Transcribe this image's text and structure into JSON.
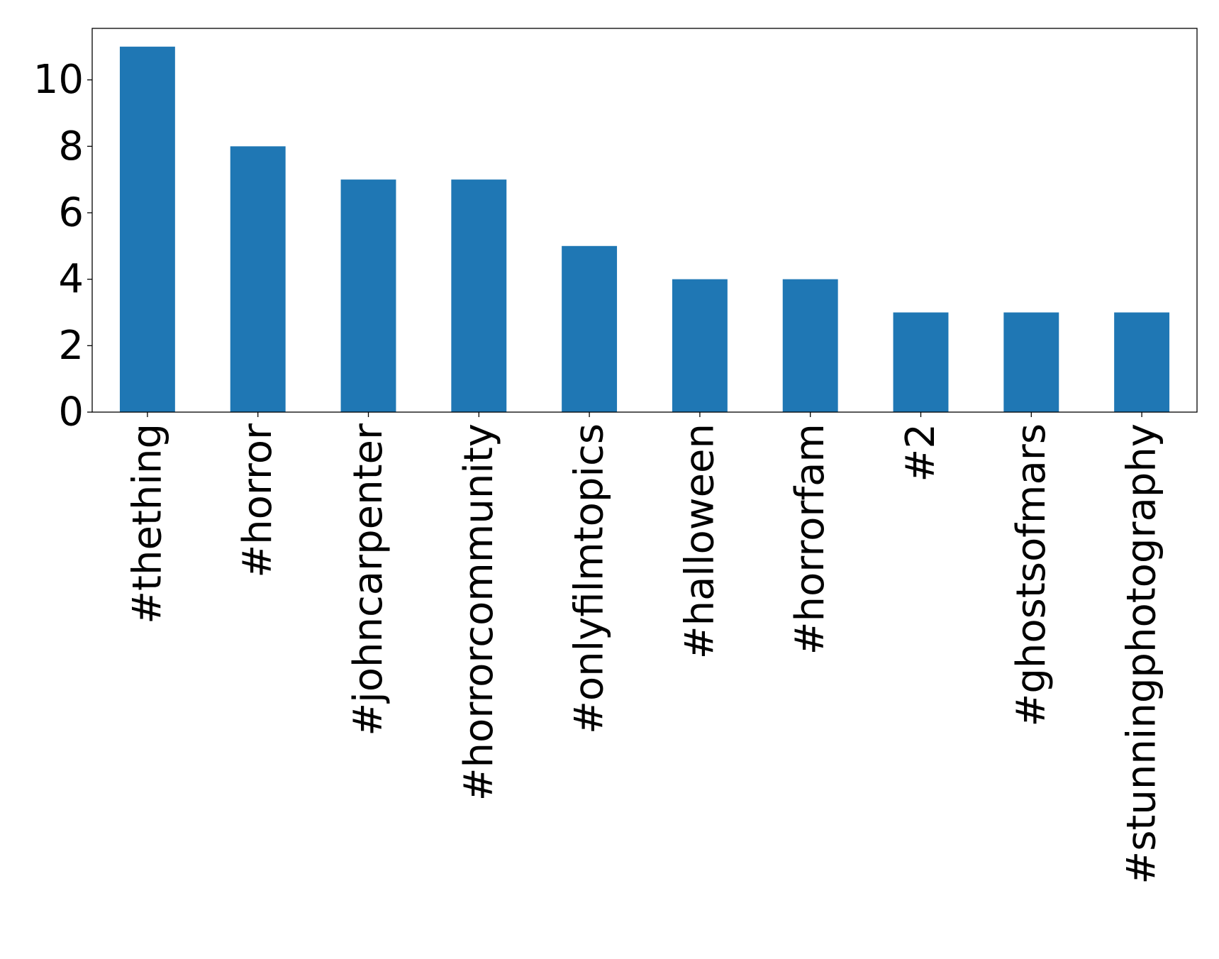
{
  "chart_data": {
    "type": "bar",
    "title": "",
    "xlabel": "",
    "ylabel": "",
    "categories": [
      "#thething",
      "#horror",
      "#johncarpenter",
      "#horrorcommunity",
      "#onlyfilmtopics",
      "#halloween",
      "#horrorfam",
      "#2",
      "#ghostsofmars",
      "#stunningphotography"
    ],
    "values": [
      11,
      8,
      7,
      7,
      5,
      4,
      4,
      3,
      3,
      3
    ],
    "ylim": [
      0,
      11.55
    ],
    "yticks": [
      0,
      2,
      4,
      6,
      8,
      10
    ],
    "bar_color": "#1f77b4",
    "grid": false,
    "legend": "none"
  }
}
